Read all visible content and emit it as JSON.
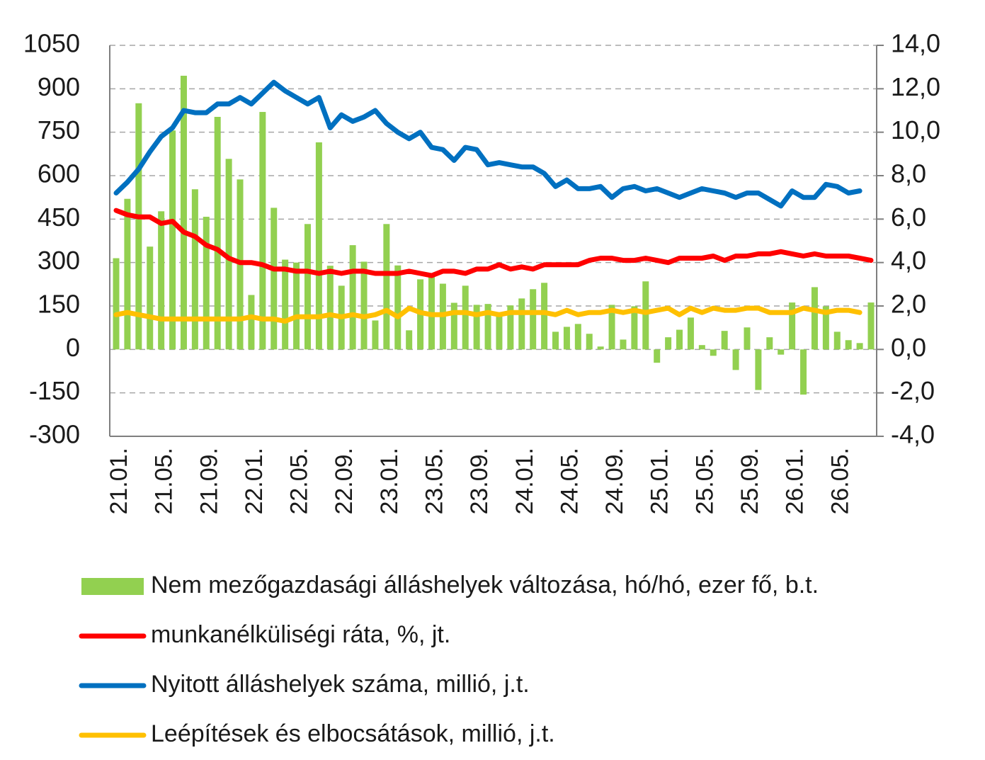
{
  "chart_data": {
    "type": "bar",
    "categories": [
      "21.01.",
      null,
      null,
      null,
      "21.05.",
      null,
      null,
      null,
      "21.09.",
      null,
      null,
      null,
      "22.01.",
      null,
      null,
      null,
      "22.05.",
      null,
      null,
      null,
      "22.09.",
      null,
      null,
      null,
      "23.01.",
      null,
      null,
      null,
      "23.05.",
      null,
      null,
      null,
      "23.09.",
      null,
      null,
      null,
      "24.01.",
      null,
      null,
      null,
      "24.05.",
      null,
      null,
      null,
      "24.09.",
      null,
      null,
      null,
      "25.01.",
      null,
      null,
      null,
      "25.05.",
      null,
      null,
      null,
      "25.09.",
      null,
      null,
      null,
      "26.01.",
      null,
      null,
      null,
      "26.05.",
      null,
      null,
      null
    ],
    "series": [
      {
        "name": "Nem mezőgazdasági álláshelyek változása, hó/hó, ezer fő, b.t.",
        "type": "bar",
        "color": "#92d050",
        "values": [
          315,
          520,
          850,
          355,
          477,
          756,
          945,
          553,
          458,
          803,
          658,
          587,
          188,
          820,
          489,
          310,
          300,
          433,
          715,
          289,
          220,
          360,
          303,
          100,
          433,
          290,
          66,
          242,
          262,
          227,
          161,
          220,
          154,
          157,
          122,
          152,
          176,
          208,
          230,
          61,
          78,
          88,
          54,
          10,
          154,
          34,
          149,
          235,
          -46,
          42,
          68,
          110,
          15,
          -22,
          64,
          -71,
          76,
          -140,
          42,
          -18,
          162,
          -156,
          215,
          149,
          61,
          32,
          22,
          162
        ]
      },
      {
        "name": "munkanélküliségi ráta, %, jt.",
        "type": "line",
        "axis": "y2",
        "color": "#ff0000",
        "values": [
          6.4,
          6.2,
          6.1,
          6.1,
          5.8,
          5.9,
          5.4,
          5.2,
          4.8,
          4.6,
          4.2,
          4.0,
          4.0,
          3.9,
          3.7,
          3.7,
          3.6,
          3.6,
          3.5,
          3.6,
          3.5,
          3.6,
          3.6,
          3.5,
          3.5,
          3.5,
          3.6,
          3.5,
          3.4,
          3.6,
          3.6,
          3.5,
          3.7,
          3.7,
          3.9,
          3.7,
          3.8,
          3.7,
          3.9,
          3.9,
          3.9,
          3.9,
          4.1,
          4.2,
          4.2,
          4.1,
          4.1,
          4.2,
          4.1,
          4.0,
          4.2,
          4.2,
          4.2,
          4.3,
          4.1,
          4.3,
          4.3,
          4.4,
          4.4,
          4.5,
          4.4,
          4.3,
          4.4,
          4.3,
          4.3,
          4.3,
          4.2,
          4.1
        ]
      },
      {
        "name": "Nyitott álláshelyek száma, millió, j.t.",
        "type": "line",
        "axis": "y2",
        "color": "#0070c0",
        "values": [
          7.2,
          7.7,
          8.3,
          9.1,
          9.8,
          10.2,
          11.0,
          10.9,
          10.9,
          11.3,
          11.3,
          11.6,
          11.3,
          11.8,
          12.3,
          11.9,
          11.6,
          11.3,
          11.6,
          10.2,
          10.8,
          10.5,
          10.7,
          11.0,
          10.4,
          10.0,
          9.7,
          10.0,
          9.3,
          9.2,
          8.7,
          9.3,
          9.2,
          8.5,
          8.6,
          8.5,
          8.4,
          8.4,
          8.1,
          7.5,
          7.8,
          7.4,
          7.4,
          7.5,
          7.0,
          7.4,
          7.5,
          7.3,
          7.4,
          7.2,
          7.0,
          7.2,
          7.4,
          7.3,
          7.2,
          7.0,
          7.2,
          7.2,
          6.9,
          6.6,
          7.3,
          7.0,
          7.0,
          7.6,
          7.5,
          7.2,
          7.3,
          null
        ]
      },
      {
        "name": "Leépítések és elbocsátások, millió, j.t.",
        "type": "line",
        "axis": "y2",
        "color": "#ffc000",
        "values": [
          1.6,
          1.7,
          1.6,
          1.5,
          1.4,
          1.4,
          1.4,
          1.4,
          1.4,
          1.4,
          1.4,
          1.4,
          1.5,
          1.4,
          1.4,
          1.3,
          1.5,
          1.5,
          1.5,
          1.6,
          1.5,
          1.6,
          1.5,
          1.6,
          1.8,
          1.5,
          1.9,
          1.7,
          1.6,
          1.6,
          1.7,
          1.7,
          1.6,
          1.7,
          1.6,
          1.7,
          1.7,
          1.7,
          1.7,
          1.6,
          1.8,
          1.6,
          1.7,
          1.7,
          1.8,
          1.7,
          1.8,
          1.7,
          1.8,
          1.9,
          1.6,
          1.9,
          1.7,
          1.9,
          1.8,
          1.8,
          1.9,
          1.9,
          1.7,
          1.7,
          1.7,
          1.9,
          1.8,
          1.7,
          1.8,
          1.8,
          1.7,
          null
        ]
      }
    ],
    "ylim": [
      -300,
      1050
    ],
    "yticks": [
      -300,
      -150,
      0,
      150,
      300,
      450,
      600,
      750,
      900,
      1050
    ],
    "y2lim": [
      -4,
      14
    ],
    "y2ticks": [
      {
        "value": -4,
        "label": "-4,0"
      },
      {
        "value": -2,
        "label": "-2,0"
      },
      {
        "value": 0,
        "label": "0,0"
      },
      {
        "value": 2,
        "label": "2,0"
      },
      {
        "value": 4,
        "label": "4,0"
      },
      {
        "value": 6,
        "label": "6,0"
      },
      {
        "value": 8,
        "label": "8,0"
      },
      {
        "value": 10,
        "label": "10,0"
      },
      {
        "value": 12,
        "label": "12,0"
      },
      {
        "value": 14,
        "label": "14,0"
      }
    ],
    "grid": true,
    "legend": "bottom"
  }
}
